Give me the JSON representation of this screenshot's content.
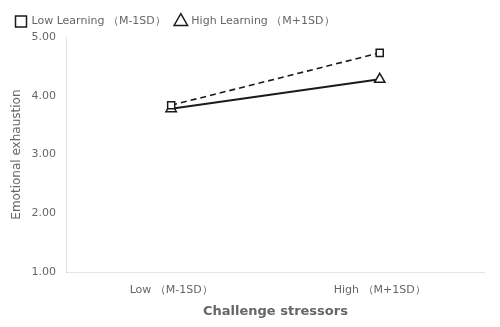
{
  "chart_data": {
    "type": "line",
    "x_label": "Challenge stressors",
    "y_label": "Emotional exhaustion",
    "categories": [
      "Low （M-1SD）",
      "High （M+1SD）"
    ],
    "series": [
      {
        "name": "Low Learning （M-1SD）",
        "color": "#1a1a1a",
        "line_style": "dashed",
        "marker": "square",
        "values": [
          3.84,
          4.73
        ]
      },
      {
        "name": "High Learning （M+1SD）",
        "color": "#1a1a1a",
        "line_style": "solid",
        "marker": "triangle",
        "values": [
          3.78,
          4.28
        ]
      }
    ],
    "ylim": [
      1.0,
      5.0
    ],
    "yticks": [
      {
        "value": 1.0,
        "label": "1.00"
      },
      {
        "value": 2.0,
        "label": "2.00"
      },
      {
        "value": 3.0,
        "label": "3.00"
      },
      {
        "value": 4.0,
        "label": "4.00"
      },
      {
        "value": 5.0,
        "label": "5.00"
      }
    ],
    "grid": false,
    "legend": "upper left"
  }
}
